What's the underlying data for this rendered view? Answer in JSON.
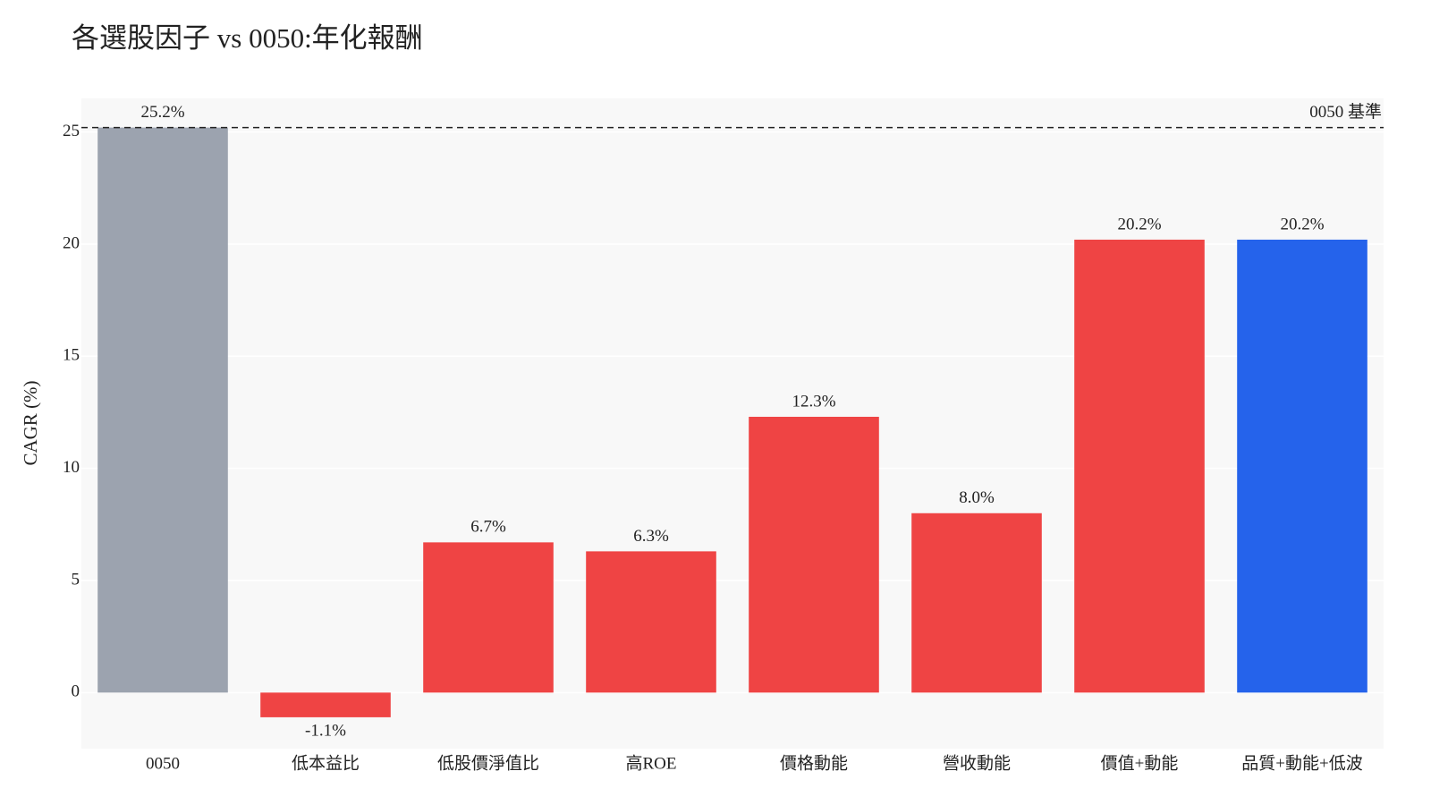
{
  "chart_data": {
    "type": "bar",
    "title": "各選股因子 vs 0050:年化報酬",
    "y_label": "CAGR (%)",
    "categories": [
      "0050",
      "低本益比",
      "低股價淨值比",
      "高ROE",
      "價格動能",
      "營收動能",
      "價值+動能",
      "品質+動能+低波"
    ],
    "values": [
      25.2,
      -1.1,
      6.7,
      6.3,
      12.3,
      8.0,
      20.2,
      20.2
    ],
    "value_labels": [
      "25.2%",
      "-1.1%",
      "6.7%",
      "6.3%",
      "12.3%",
      "8.0%",
      "20.2%",
      "20.2%"
    ],
    "colors": [
      "#9ca3af",
      "#ef4444",
      "#ef4444",
      "#ef4444",
      "#ef4444",
      "#ef4444",
      "#ef4444",
      "#2563eb"
    ],
    "ylim": [
      -2.5,
      26.5
    ],
    "yticks": [
      0,
      5,
      10,
      15,
      20,
      25
    ],
    "grid": true,
    "reference_line": {
      "value": 25.2,
      "label": "0050 基準"
    }
  }
}
